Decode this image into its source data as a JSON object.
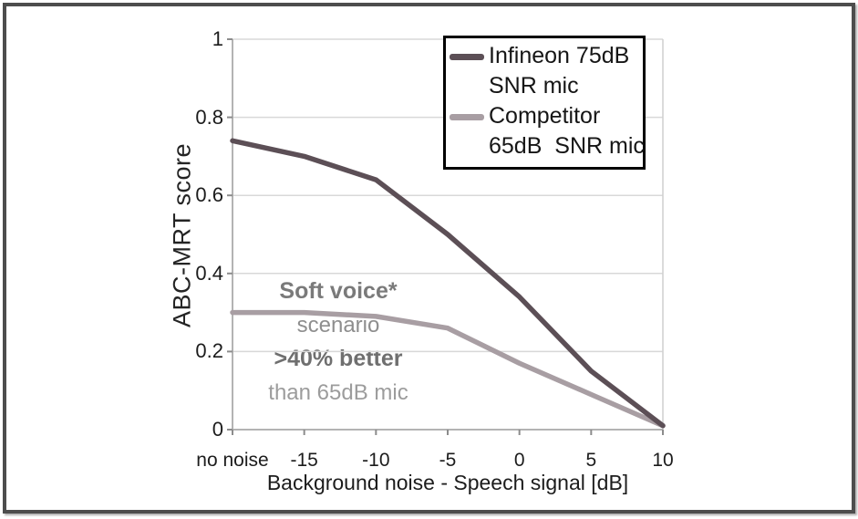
{
  "chart_data": {
    "type": "line",
    "title": "",
    "xlabel": "Background noise - Speech signal [dB]",
    "ylabel": "ABC-MRT score",
    "categories": [
      "no noise",
      "-15",
      "-10",
      "-5",
      "0",
      "5",
      "10"
    ],
    "ylim": [
      0,
      1
    ],
    "ytick_labels": [
      "1",
      "0.8",
      "0.6",
      "0.4",
      "0.2",
      "0"
    ],
    "ytick_values": [
      1,
      0.8,
      0.6,
      0.4,
      0.2,
      0
    ],
    "grid": true,
    "series": [
      {
        "name": "Infineon 75dB SNR mic",
        "color": "#5c4f56",
        "values": [
          0.74,
          0.7,
          0.64,
          0.5,
          0.34,
          0.15,
          0.01
        ]
      },
      {
        "name": "Competitor 65dB SNR mic",
        "color": "#a89ea3",
        "values": [
          0.3,
          0.3,
          0.29,
          0.26,
          0.17,
          0.09,
          0.01
        ]
      }
    ],
    "legend": {
      "position": "top-right",
      "border_color": "#000000",
      "items": [
        {
          "lines": [
            "Infineon 75dB",
            "SNR mic"
          ]
        },
        {
          "lines": [
            "Competitor",
            "65dB  SNR mic"
          ]
        }
      ]
    },
    "annotations": [
      {
        "text": "Soft voice*",
        "bold": true,
        "color": "#7a7a7a"
      },
      {
        "text": "scenario",
        "bold": false,
        "color": "#8e8e8e"
      },
      {
        "text": ">40% better",
        "bold": true,
        "color": "#6f6f6f"
      },
      {
        "text": "than 65dB mic",
        "bold": false,
        "color": "#9c9c9c"
      }
    ],
    "colors": {
      "grid": "#d8d8d8",
      "axis": "#b3b3b3",
      "plot_border": "#cfcfcf",
      "tick_mark": "#8c8c8c",
      "tick_label": "#1c1c1c",
      "axis_title": "#1c1c1c",
      "legend_text": "#161616",
      "frame_border": "#4d4d4d"
    }
  }
}
